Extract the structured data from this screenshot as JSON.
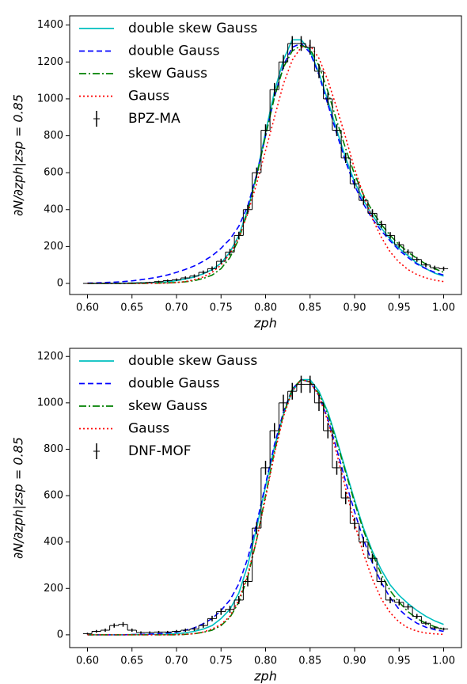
{
  "chart_data": [
    {
      "type": "line",
      "xlabel": "zph",
      "ylabel": "∂N/∂zph|zsp = 0.85",
      "x": [
        0.6,
        0.61,
        0.62,
        0.63,
        0.64,
        0.65,
        0.66,
        0.67,
        0.68,
        0.69,
        0.7,
        0.71,
        0.72,
        0.73,
        0.74,
        0.75,
        0.76,
        0.77,
        0.78,
        0.79,
        0.8,
        0.81,
        0.82,
        0.83,
        0.84,
        0.85,
        0.86,
        0.87,
        0.88,
        0.89,
        0.9,
        0.91,
        0.92,
        0.93,
        0.94,
        0.95,
        0.96,
        0.97,
        0.98,
        0.99,
        1.0
      ],
      "xlim": [
        0.58,
        1.02
      ],
      "xticks": [
        {
          "value": 0.6,
          "label": "0.60"
        },
        {
          "value": 0.65,
          "label": "0.65"
        },
        {
          "value": 0.7,
          "label": "0.70"
        },
        {
          "value": 0.75,
          "label": "0.75"
        },
        {
          "value": 0.8,
          "label": "0.80"
        },
        {
          "value": 0.85,
          "label": "0.85"
        },
        {
          "value": 0.9,
          "label": "0.90"
        },
        {
          "value": 0.95,
          "label": "0.95"
        },
        {
          "value": 1.0,
          "label": "1.00"
        }
      ],
      "ylim": [
        -60,
        1450
      ],
      "yticks": [
        0,
        200,
        400,
        600,
        800,
        1000,
        1200,
        1400
      ],
      "series": [
        {
          "name": "double skew Gauss",
          "color": "#00bfbf",
          "dash": "solid",
          "values": [
            0,
            0,
            0,
            1,
            1,
            2,
            3,
            4,
            6,
            9,
            15,
            24,
            35,
            52,
            75,
            110,
            170,
            260,
            400,
            590,
            820,
            1040,
            1210,
            1320,
            1320,
            1260,
            1140,
            990,
            830,
            680,
            550,
            450,
            370,
            300,
            240,
            190,
            150,
            110,
            80,
            55,
            40
          ]
        },
        {
          "name": "double Gauss",
          "color": "#0000ff",
          "dash": "dashed",
          "values": [
            2,
            3,
            5,
            7,
            10,
            14,
            20,
            27,
            35,
            46,
            60,
            76,
            95,
            120,
            150,
            190,
            240,
            310,
            420,
            590,
            800,
            1010,
            1180,
            1280,
            1300,
            1250,
            1130,
            970,
            810,
            660,
            530,
            430,
            350,
            285,
            230,
            180,
            140,
            105,
            80,
            60,
            45
          ]
        },
        {
          "name": "skew Gauss",
          "color": "#008000",
          "dash": "dashdot",
          "values": [
            0,
            0,
            0,
            0,
            0,
            0,
            1,
            1,
            2,
            3,
            5,
            9,
            15,
            27,
            45,
            80,
            140,
            240,
            390,
            580,
            800,
            1010,
            1170,
            1260,
            1290,
            1270,
            1180,
            1040,
            880,
            730,
            590,
            480,
            390,
            320,
            260,
            210,
            170,
            135,
            105,
            80,
            60
          ]
        },
        {
          "name": "Gauss",
          "color": "#ff0000",
          "dash": "dotted",
          "values": [
            0,
            0,
            0,
            0,
            0,
            0,
            0,
            1,
            1,
            2,
            5,
            10,
            20,
            35,
            60,
            100,
            160,
            250,
            380,
            540,
            720,
            900,
            1080,
            1210,
            1280,
            1290,
            1220,
            1100,
            950,
            790,
            620,
            480,
            350,
            250,
            170,
            115,
            75,
            48,
            30,
            18,
            10
          ]
        },
        {
          "name": "BPZ-MA",
          "color": "#000000",
          "marker": "errorbar",
          "values": [
            0,
            0,
            0,
            0,
            0,
            2,
            3,
            5,
            10,
            15,
            20,
            30,
            40,
            60,
            80,
            120,
            170,
            260,
            400,
            600,
            830,
            1050,
            1200,
            1300,
            1300,
            1280,
            1150,
            1000,
            830,
            680,
            540,
            450,
            380,
            320,
            260,
            210,
            170,
            130,
            100,
            85,
            80
          ],
          "errors": [
            2,
            2,
            2,
            2,
            2,
            3,
            3,
            4,
            5,
            6,
            7,
            8,
            9,
            10,
            12,
            14,
            17,
            20,
            24,
            28,
            32,
            36,
            38,
            40,
            40,
            40,
            38,
            35,
            32,
            28,
            26,
            24,
            22,
            20,
            18,
            16,
            14,
            13,
            12,
            11,
            11
          ]
        }
      ]
    },
    {
      "type": "line",
      "xlabel": "zph",
      "ylabel": "∂N/∂zph|zsp = 0.85",
      "x": [
        0.6,
        0.61,
        0.62,
        0.63,
        0.64,
        0.65,
        0.66,
        0.67,
        0.68,
        0.69,
        0.7,
        0.71,
        0.72,
        0.73,
        0.74,
        0.75,
        0.76,
        0.77,
        0.78,
        0.79,
        0.8,
        0.81,
        0.82,
        0.83,
        0.84,
        0.85,
        0.86,
        0.87,
        0.88,
        0.89,
        0.9,
        0.91,
        0.92,
        0.93,
        0.94,
        0.95,
        0.96,
        0.97,
        0.98,
        0.99,
        1.0
      ],
      "xlim": [
        0.58,
        1.02
      ],
      "xticks": [
        {
          "value": 0.6,
          "label": "0.60"
        },
        {
          "value": 0.65,
          "label": "0.65"
        },
        {
          "value": 0.7,
          "label": "0.70"
        },
        {
          "value": 0.75,
          "label": "0.75"
        },
        {
          "value": 0.8,
          "label": "0.80"
        },
        {
          "value": 0.85,
          "label": "0.85"
        },
        {
          "value": 0.9,
          "label": "0.90"
        },
        {
          "value": 0.95,
          "label": "0.95"
        },
        {
          "value": 1.0,
          "label": "1.00"
        }
      ],
      "ylim": [
        -55,
        1235
      ],
      "yticks": [
        0,
        200,
        400,
        600,
        800,
        1000,
        1200
      ],
      "series": [
        {
          "name": "double skew Gauss",
          "color": "#00bfbf",
          "dash": "solid",
          "values": [
            0,
            0,
            0,
            0,
            0,
            1,
            1,
            2,
            2,
            3,
            5,
            9,
            15,
            25,
            40,
            70,
            110,
            180,
            300,
            460,
            640,
            810,
            950,
            1050,
            1100,
            1100,
            1050,
            960,
            840,
            710,
            580,
            460,
            360,
            280,
            215,
            170,
            135,
            105,
            80,
            60,
            45
          ]
        },
        {
          "name": "double Gauss",
          "color": "#0000ff",
          "dash": "dashed",
          "values": [
            0,
            0,
            0,
            0,
            0,
            1,
            2,
            3,
            5,
            8,
            12,
            20,
            30,
            48,
            70,
            105,
            150,
            220,
            330,
            480,
            650,
            820,
            960,
            1060,
            1100,
            1090,
            1030,
            930,
            800,
            660,
            530,
            410,
            310,
            225,
            160,
            110,
            75,
            50,
            33,
            22,
            15
          ]
        },
        {
          "name": "skew Gauss",
          "color": "#008000",
          "dash": "dashdot",
          "values": [
            0,
            0,
            0,
            0,
            0,
            0,
            0,
            0,
            0,
            0,
            0,
            2,
            5,
            11,
            20,
            40,
            75,
            140,
            250,
            410,
            600,
            790,
            950,
            1060,
            1100,
            1090,
            1040,
            950,
            830,
            700,
            570,
            450,
            350,
            260,
            190,
            140,
            100,
            70,
            50,
            35,
            25
          ]
        },
        {
          "name": "Gauss",
          "color": "#ff0000",
          "dash": "dotted",
          "values": [
            0,
            0,
            0,
            0,
            0,
            0,
            0,
            0,
            0,
            0,
            1,
            2,
            5,
            12,
            25,
            45,
            80,
            150,
            260,
            410,
            590,
            780,
            940,
            1050,
            1100,
            1090,
            1030,
            920,
            780,
            630,
            480,
            350,
            240,
            155,
            95,
            55,
            30,
            16,
            8,
            4,
            2
          ]
        },
        {
          "name": "DNF-MOF",
          "color": "#000000",
          "marker": "errorbar",
          "values": [
            5,
            15,
            20,
            40,
            45,
            20,
            10,
            10,
            12,
            12,
            15,
            20,
            25,
            40,
            70,
            100,
            110,
            150,
            230,
            460,
            720,
            880,
            1000,
            1050,
            1080,
            1080,
            1000,
            880,
            720,
            590,
            480,
            400,
            330,
            230,
            150,
            140,
            120,
            80,
            50,
            30,
            25
          ],
          "errors": [
            4,
            6,
            7,
            9,
            10,
            7,
            5,
            5,
            5,
            5,
            6,
            7,
            8,
            10,
            12,
            14,
            15,
            17,
            21,
            26,
            30,
            33,
            35,
            36,
            37,
            37,
            35,
            33,
            30,
            27,
            25,
            22,
            20,
            17,
            14,
            13,
            12,
            10,
            8,
            6,
            6
          ]
        }
      ]
    }
  ]
}
